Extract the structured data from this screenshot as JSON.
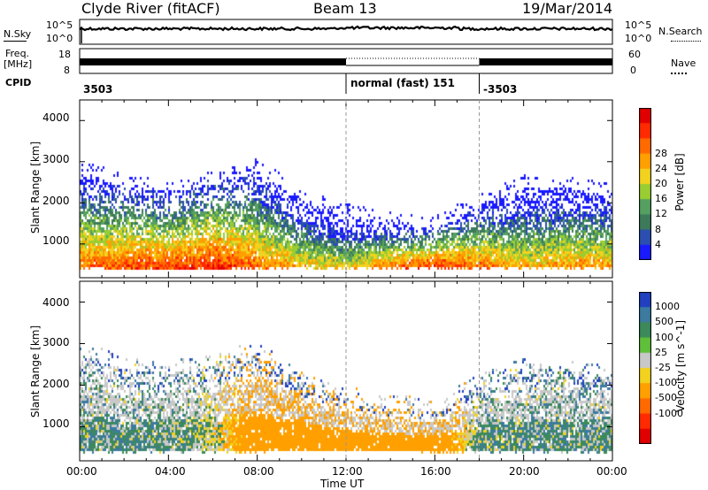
{
  "header": {
    "station": "Clyde River (fitACF)",
    "beam": "Beam 13",
    "date": "19/Mar/2014"
  },
  "strip": {
    "nsky_label": "N.Sky",
    "nsky_top": "10^5",
    "nsky_bottom": "10^0",
    "nsearch_label": "N.Search",
    "nsearch_top": "10^5",
    "nsearch_bottom": "10^0",
    "freq_label": "Freq.",
    "freq_unit": "[MHz]",
    "freq_top": "18",
    "freq_bottom": "8",
    "nave_label": "Nave",
    "nave_top": "60",
    "nave_bottom": "0",
    "cpid_label": "CPID",
    "cpid_segments": [
      {
        "text": "3503",
        "start_hour": 0
      },
      {
        "text": "normal (fast) 151",
        "start_hour": 12
      },
      {
        "text": "-3503",
        "start_hour": 18
      }
    ]
  },
  "chart_data": [
    {
      "type": "heatmap",
      "quantity": "Power",
      "ylabel": "Slant Range [km]",
      "xlabel": "Time UT",
      "xlim_hours": [
        0,
        24
      ],
      "ylim_km": [
        180,
        4500
      ],
      "y_ticks": [
        1000,
        2000,
        3000,
        4000
      ],
      "x_ticks": [
        "00:00",
        "04:00",
        "08:00",
        "12:00",
        "16:00",
        "20:00",
        "00:00"
      ],
      "colorbar": {
        "label": "Power [dB]",
        "ticks": [
          "4",
          "8",
          "12",
          "16",
          "20",
          "24",
          "28"
        ],
        "colors": [
          "#1a1aff",
          "#2a4fb0",
          "#3c7a5a",
          "#55a060",
          "#9acd32",
          "#f2d21e",
          "#ffa000",
          "#ff6a00",
          "#ff2a00",
          "#e00000"
        ]
      },
      "echo_envelope": [
        {
          "hour": 0.5,
          "low_km": 450,
          "high_km": 2700,
          "core_db": 24
        },
        {
          "hour": 2.0,
          "low_km": 420,
          "high_km": 2400,
          "core_db": 26
        },
        {
          "hour": 4.0,
          "low_km": 420,
          "high_km": 2300,
          "core_db": 26
        },
        {
          "hour": 6.0,
          "low_km": 430,
          "high_km": 2500,
          "core_db": 28
        },
        {
          "hour": 8.0,
          "low_km": 450,
          "high_km": 2800,
          "core_db": 24
        },
        {
          "hour": 10.0,
          "low_km": 470,
          "high_km": 2100,
          "core_db": 20
        },
        {
          "hour": 12.0,
          "low_km": 470,
          "high_km": 1700,
          "core_db": 18
        },
        {
          "hour": 14.0,
          "low_km": 460,
          "high_km": 1500,
          "core_db": 24
        },
        {
          "hour": 16.0,
          "low_km": 440,
          "high_km": 1400,
          "core_db": 28
        },
        {
          "hour": 18.0,
          "low_km": 440,
          "high_km": 2000,
          "core_db": 24
        },
        {
          "hour": 20.0,
          "low_km": 440,
          "high_km": 2400,
          "core_db": 20
        },
        {
          "hour": 22.0,
          "low_km": 440,
          "high_km": 2400,
          "core_db": 22
        },
        {
          "hour": 24.0,
          "low_km": 440,
          "high_km": 2200,
          "core_db": 22
        }
      ]
    },
    {
      "type": "heatmap",
      "quantity": "Velocity",
      "ylabel": "Slant Range [km]",
      "xlabel": "Time UT",
      "xlim_hours": [
        0,
        24
      ],
      "ylim_km": [
        180,
        4500
      ],
      "y_ticks": [
        1000,
        2000,
        3000,
        4000
      ],
      "x_ticks": [
        "00:00",
        "04:00",
        "08:00",
        "12:00",
        "16:00",
        "20:00",
        "00:00"
      ],
      "colorbar": {
        "label": "Velocity  [m s^-1]",
        "ticks": [
          "1000",
          "500",
          "100",
          "25",
          "-25",
          "-100",
          "-500",
          "-1000"
        ],
        "colors": [
          "#2040c0",
          "#3c7aa0",
          "#3c8a5a",
          "#5fbf3a",
          "#c8c8c8",
          "#f2d21e",
          "#ffa000",
          "#ff6a00",
          "#ff2a00",
          "#e00000"
        ]
      },
      "echo_envelope": [
        {
          "hour": 0.5,
          "low_km": 450,
          "high_km": 2700,
          "core_ms": 60
        },
        {
          "hour": 2.0,
          "low_km": 420,
          "high_km": 2400,
          "core_ms": 60
        },
        {
          "hour": 4.0,
          "low_km": 420,
          "high_km": 2300,
          "core_ms": 60
        },
        {
          "hour": 6.0,
          "low_km": 430,
          "high_km": 2500,
          "core_ms": 0
        },
        {
          "hour": 8.0,
          "low_km": 450,
          "high_km": 2800,
          "core_ms": -300
        },
        {
          "hour": 10.0,
          "low_km": 470,
          "high_km": 2100,
          "core_ms": -300
        },
        {
          "hour": 12.0,
          "low_km": 470,
          "high_km": 1700,
          "core_ms": -300
        },
        {
          "hour": 14.0,
          "low_km": 460,
          "high_km": 1500,
          "core_ms": -300
        },
        {
          "hour": 16.0,
          "low_km": 440,
          "high_km": 1400,
          "core_ms": -300
        },
        {
          "hour": 18.0,
          "low_km": 440,
          "high_km": 2000,
          "core_ms": 60
        },
        {
          "hour": 20.0,
          "low_km": 440,
          "high_km": 2400,
          "core_ms": 60
        },
        {
          "hour": 22.0,
          "low_km": 440,
          "high_km": 2400,
          "core_ms": 60
        },
        {
          "hour": 24.0,
          "low_km": 440,
          "high_km": 2200,
          "core_ms": 60
        }
      ]
    }
  ]
}
